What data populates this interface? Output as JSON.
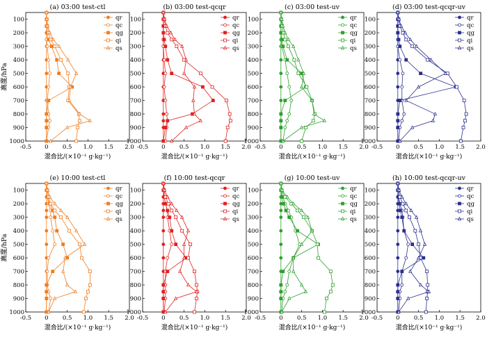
{
  "figure": {
    "y_axis_label": "高度/hPa",
    "x_axis_label": "混合比/(×10⁻¹ g·kg⁻¹)",
    "x_ticks": [
      "-0.5",
      "0",
      "0.5",
      "1.0",
      "1.5",
      "2.0"
    ],
    "y_ticks": [
      "100",
      "200",
      "300",
      "400",
      "500",
      "600",
      "700",
      "800",
      "900",
      "1000"
    ]
  },
  "chart_data": [
    {
      "type": "line",
      "title": "(a) 03:00 test-ctl",
      "color": "#f07d20",
      "xlim": [
        -0.5,
        2.0
      ],
      "ylim": [
        1000,
        50
      ],
      "y": [
        50,
        100,
        150,
        200,
        250,
        300,
        400,
        500,
        600,
        700,
        800,
        850,
        900,
        1000
      ],
      "series": [
        {
          "name": "qr",
          "values": [
            0,
            0,
            0,
            0,
            0,
            0,
            0,
            0,
            0,
            0,
            0,
            0,
            0,
            0
          ]
        },
        {
          "name": "qc",
          "values": [
            0,
            0,
            0,
            0,
            0,
            0.02,
            0.05,
            0.08,
            0.05,
            0.02,
            0.05,
            0.08,
            0.05,
            0
          ]
        },
        {
          "name": "qg",
          "values": [
            0,
            0,
            0,
            0.01,
            0.05,
            0.12,
            0.25,
            0.3,
            0.62,
            0.05,
            0,
            0,
            0,
            0
          ]
        },
        {
          "name": "qi",
          "values": [
            0,
            0.01,
            0.02,
            0.05,
            0.1,
            0.2,
            0.35,
            0.52,
            0.55,
            0.52,
            0.78,
            0.8,
            0.75,
            0.72
          ]
        },
        {
          "name": "qs",
          "values": [
            0,
            0.01,
            0.03,
            0.08,
            0.16,
            0.3,
            0.52,
            0.72,
            0.58,
            0.55,
            0.8,
            1.05,
            0.5,
            0.1
          ]
        }
      ]
    },
    {
      "type": "line",
      "title": "(b) 03:00 test-qcqr",
      "color": "#e02020",
      "xlim": [
        -0.5,
        2.0
      ],
      "ylim": [
        1000,
        50
      ],
      "y": [
        50,
        100,
        150,
        200,
        250,
        300,
        400,
        500,
        600,
        700,
        800,
        850,
        900,
        1000
      ],
      "series": [
        {
          "name": "qr",
          "values": [
            0,
            0,
            0,
            0,
            0,
            0,
            0,
            0,
            0,
            0,
            0,
            0,
            0,
            0
          ]
        },
        {
          "name": "qc",
          "values": [
            0,
            0,
            0,
            0,
            0,
            0,
            0.02,
            0.05,
            0.02,
            0.05,
            0.08,
            0.1,
            0.08,
            0.05
          ]
        },
        {
          "name": "qg",
          "values": [
            0,
            0,
            0,
            0,
            0.02,
            0.05,
            0.1,
            0.2,
            0.95,
            1.2,
            0.7,
            0.1,
            0.05,
            0
          ]
        },
        {
          "name": "qi",
          "values": [
            0,
            0.02,
            0.05,
            0.1,
            0.2,
            0.32,
            0.5,
            0.9,
            1.18,
            1.52,
            1.6,
            1.62,
            1.55,
            1.5
          ]
        },
        {
          "name": "qs",
          "values": [
            0,
            0.03,
            0.08,
            0.18,
            0.28,
            0.45,
            0.55,
            0.5,
            0.75,
            0.72,
            0.75,
            0.9,
            0.55,
            0.2
          ]
        }
      ]
    },
    {
      "type": "line",
      "title": "(c) 03:00 test-uv",
      "color": "#2ea02e",
      "xlim": [
        -0.5,
        2.0
      ],
      "ylim": [
        1000,
        50
      ],
      "y": [
        50,
        100,
        150,
        200,
        250,
        300,
        400,
        500,
        600,
        700,
        800,
        850,
        900,
        1000
      ],
      "series": [
        {
          "name": "qr",
          "values": [
            0,
            0,
            0,
            0,
            0,
            0,
            0,
            0,
            0,
            0,
            0,
            0,
            0,
            0
          ]
        },
        {
          "name": "qc",
          "values": [
            0,
            0,
            0,
            0,
            0,
            0.02,
            0.1,
            0.15,
            0.2,
            0.25,
            0.2,
            0.15,
            0.1,
            0.05
          ]
        },
        {
          "name": "qg",
          "values": [
            0,
            0,
            0,
            0,
            0.02,
            0.05,
            0.15,
            0.5,
            0.6,
            0.1,
            0,
            0,
            0,
            0
          ]
        },
        {
          "name": "qi",
          "values": [
            0,
            0.01,
            0.03,
            0.06,
            0.1,
            0.18,
            0.32,
            0.42,
            0.62,
            0.75,
            0.82,
            0.78,
            0.6,
            0.5
          ]
        },
        {
          "name": "qs",
          "values": [
            0,
            0.02,
            0.05,
            0.1,
            0.18,
            0.3,
            0.42,
            0.55,
            0.5,
            0.75,
            0.8,
            1.05,
            0.5,
            0.05
          ]
        }
      ]
    },
    {
      "type": "line",
      "title": "(d) 03:00 test-qcqr-uv",
      "color": "#2b2f8f",
      "xlim": [
        -0.5,
        2.0
      ],
      "ylim": [
        1000,
        50
      ],
      "y": [
        50,
        100,
        150,
        200,
        250,
        300,
        400,
        500,
        600,
        700,
        800,
        850,
        900,
        1000
      ],
      "series": [
        {
          "name": "qr",
          "values": [
            0,
            0,
            0,
            0,
            0,
            0,
            0,
            0,
            0,
            0,
            0,
            0,
            0,
            0
          ]
        },
        {
          "name": "qc",
          "values": [
            0,
            0,
            0,
            0,
            0,
            0,
            0.05,
            0.12,
            0.1,
            0.1,
            0.15,
            0.1,
            0.05,
            0.02
          ]
        },
        {
          "name": "qg",
          "values": [
            0,
            0,
            0,
            0,
            0.02,
            0.05,
            0.2,
            0.55,
            1.4,
            0.05,
            0,
            0,
            0,
            0
          ]
        },
        {
          "name": "qi",
          "values": [
            0,
            0.02,
            0.05,
            0.12,
            0.2,
            0.35,
            0.72,
            1.2,
            1.42,
            1.6,
            1.65,
            1.62,
            1.58,
            1.52
          ]
        },
        {
          "name": "qs",
          "values": [
            0,
            0.03,
            0.08,
            0.18,
            0.3,
            0.45,
            0.8,
            1.15,
            0.5,
            0.2,
            0.9,
            0.85,
            0.35,
            0.05
          ]
        }
      ]
    },
    {
      "type": "line",
      "title": "(e) 10:00 test-ctl",
      "color": "#f07d20",
      "xlim": [
        -0.5,
        2.0
      ],
      "ylim": [
        1000,
        50
      ],
      "y": [
        50,
        100,
        150,
        200,
        250,
        300,
        400,
        500,
        600,
        700,
        800,
        850,
        900,
        1000
      ],
      "series": [
        {
          "name": "qr",
          "values": [
            0,
            0,
            0,
            0,
            0,
            0,
            0,
            0,
            0,
            0,
            0,
            0,
            0,
            0
          ]
        },
        {
          "name": "qc",
          "values": [
            0,
            0,
            0.02,
            0.05,
            0.1,
            0.1,
            0.15,
            0.2,
            0.05,
            0.02,
            0.02,
            0.05,
            0.1,
            0.05
          ]
        },
        {
          "name": "qg",
          "values": [
            0,
            0,
            0.02,
            0.08,
            0.15,
            0.2,
            0.25,
            0.4,
            0.5,
            0.15,
            0,
            0,
            0,
            0
          ]
        },
        {
          "name": "qi",
          "values": [
            0,
            0.02,
            0.05,
            0.1,
            0.2,
            0.35,
            0.55,
            0.8,
            0.85,
            1.05,
            1.05,
            1.0,
            0.95,
            0.9
          ]
        },
        {
          "name": "qs",
          "values": [
            0,
            0.03,
            0.08,
            0.2,
            0.35,
            0.5,
            0.72,
            0.92,
            0.45,
            0.4,
            0.5,
            0.7,
            0.2,
            0.05
          ]
        }
      ]
    },
    {
      "type": "line",
      "title": "(f) 10:00 test-qcqr",
      "color": "#e02020",
      "xlim": [
        -0.5,
        2.0
      ],
      "ylim": [
        1000,
        50
      ],
      "y": [
        50,
        100,
        150,
        200,
        250,
        300,
        400,
        500,
        600,
        700,
        800,
        850,
        900,
        1000
      ],
      "series": [
        {
          "name": "qr",
          "values": [
            0,
            0,
            0,
            0,
            0,
            0,
            0,
            0,
            0,
            0,
            0,
            0,
            0,
            0
          ]
        },
        {
          "name": "qc",
          "values": [
            0,
            0,
            0.02,
            0.05,
            0.1,
            0.1,
            0.15,
            0.2,
            0.1,
            0.05,
            0.05,
            0.05,
            0.05,
            0.02
          ]
        },
        {
          "name": "qg",
          "values": [
            0,
            0,
            0.02,
            0.05,
            0.1,
            0.15,
            0.2,
            0.3,
            0.55,
            0.1,
            0,
            0,
            0,
            0
          ]
        },
        {
          "name": "qi",
          "values": [
            0,
            0.02,
            0.05,
            0.12,
            0.2,
            0.3,
            0.45,
            0.65,
            0.6,
            0.75,
            0.8,
            0.82,
            0.8,
            0.75
          ]
        },
        {
          "name": "qs",
          "values": [
            0,
            0.03,
            0.1,
            0.2,
            0.32,
            0.45,
            0.6,
            0.5,
            0.5,
            0.4,
            0.6,
            0.8,
            0.3,
            0.05
          ]
        }
      ]
    },
    {
      "type": "line",
      "title": "(g) 10:00 test-uv",
      "color": "#2ea02e",
      "xlim": [
        -0.5,
        2.0
      ],
      "ylim": [
        1000,
        50
      ],
      "y": [
        50,
        100,
        150,
        200,
        250,
        300,
        400,
        500,
        600,
        700,
        800,
        850,
        900,
        1000
      ],
      "series": [
        {
          "name": "qr",
          "values": [
            0,
            0,
            0,
            0,
            0,
            0,
            0,
            0,
            0,
            0,
            0,
            0,
            0,
            0
          ]
        },
        {
          "name": "qc",
          "values": [
            0,
            0.01,
            0.05,
            0.1,
            0.18,
            0.25,
            0.35,
            0.45,
            0.3,
            0.2,
            0.15,
            0.1,
            0.05,
            0.02
          ]
        },
        {
          "name": "qg",
          "values": [
            0,
            0,
            0.02,
            0.06,
            0.12,
            0.2,
            0.4,
            0.9,
            0.3,
            0.05,
            0,
            0,
            0,
            0
          ]
        },
        {
          "name": "qi",
          "values": [
            0,
            0.02,
            0.1,
            0.25,
            0.4,
            0.55,
            0.75,
            0.88,
            0.9,
            1.2,
            1.25,
            1.2,
            1.1,
            1.05
          ]
        },
        {
          "name": "qs",
          "values": [
            0,
            0.03,
            0.15,
            0.3,
            0.5,
            0.65,
            0.75,
            0.5,
            0.3,
            0.3,
            0.5,
            0.6,
            0.2,
            0.02
          ]
        }
      ]
    },
    {
      "type": "line",
      "title": "(h) 10:00 test-qcqr-uv",
      "color": "#2b2f8f",
      "xlim": [
        -0.5,
        2.0
      ],
      "ylim": [
        1000,
        50
      ],
      "y": [
        50,
        100,
        150,
        200,
        250,
        300,
        400,
        500,
        600,
        700,
        800,
        850,
        900,
        1000
      ],
      "series": [
        {
          "name": "qr",
          "values": [
            0,
            0,
            0,
            0,
            0,
            0,
            0,
            0,
            0,
            0,
            0,
            0,
            0,
            0
          ]
        },
        {
          "name": "qc",
          "values": [
            0,
            0,
            0.02,
            0.05,
            0.1,
            0.12,
            0.15,
            0.25,
            0.2,
            0.1,
            0.1,
            0.05,
            0.05,
            0.02
          ]
        },
        {
          "name": "qg",
          "values": [
            0,
            0,
            0.01,
            0.03,
            0.06,
            0.1,
            0.15,
            0.35,
            0.62,
            0.1,
            0,
            0,
            0,
            0
          ]
        },
        {
          "name": "qi",
          "values": [
            0,
            0.02,
            0.05,
            0.12,
            0.2,
            0.28,
            0.42,
            0.5,
            0.55,
            0.7,
            0.72,
            0.72,
            0.7,
            0.68
          ]
        },
        {
          "name": "qs",
          "values": [
            0,
            0.03,
            0.1,
            0.2,
            0.32,
            0.45,
            0.55,
            0.65,
            0.5,
            0.3,
            0.55,
            0.75,
            0.25,
            0.02
          ]
        }
      ]
    }
  ]
}
